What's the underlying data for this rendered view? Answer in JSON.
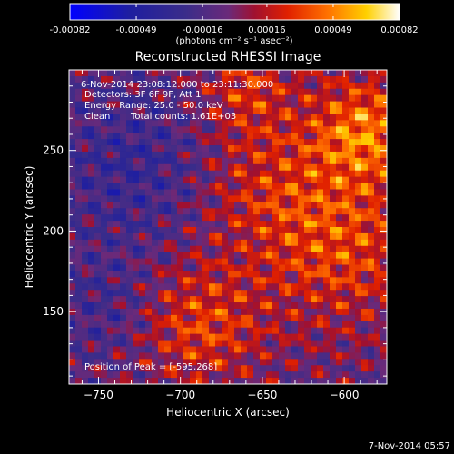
{
  "chart_data": {
    "type": "heatmap",
    "title": "Reconstructed RHESSI Image",
    "xlabel": "Heliocentric X (arcsec)",
    "ylabel": "Heliocentric Y (arcsec)",
    "xlim": [
      -768,
      -574
    ],
    "ylim": [
      105,
      300
    ],
    "x_ticks": [
      -750,
      -700,
      -650,
      -600
    ],
    "y_ticks": [
      150,
      200,
      250
    ],
    "colorbar": {
      "ticks": [
        "-0.00082",
        "-0.00049",
        "-0.00016",
        "0.00016",
        "0.00049",
        "0.00082"
      ],
      "min": -0.00082,
      "max": 0.00082,
      "unit_label": "(photons cm⁻² s⁻¹ asec⁻²)",
      "colors": [
        "#0000ff",
        "#1a1aa8",
        "#3a2a8a",
        "#5a2a8c",
        "#7a1a5a",
        "#b8000a",
        "#ff5000",
        "#ffb000",
        "#ffff60",
        "#ffffff"
      ]
    },
    "annotations": {
      "time_range": "6-Nov-2014 23:08:12.000 to 23:11:30.000",
      "detectors": "Detectors: 3F 6F 9F, Att 1",
      "energy": "Energy Range: 25.0 - 50.0 keV",
      "method": "Clean",
      "total_counts": "Total counts: 1.61E+03",
      "peak": "Position of Peak = [-595,268]"
    },
    "grid": false
  },
  "footer": {
    "timestamp": "7-Nov-2014 05:57"
  }
}
